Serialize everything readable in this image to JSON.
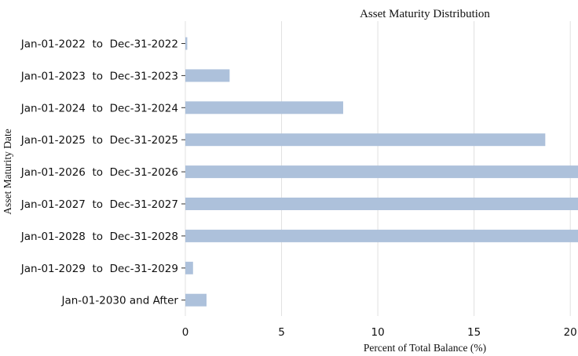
{
  "chart_data": {
    "type": "bar",
    "orientation": "horizontal",
    "title": "Asset Maturity Distribution",
    "xlabel": "Percent of Total Balance (%)",
    "ylabel": "Asset Maturity Date",
    "categories": [
      "Jan-01-2022  to  Dec-31-2022",
      "Jan-01-2023  to  Dec-31-2023",
      "Jan-01-2024  to  Dec-31-2024",
      "Jan-01-2025  to  Dec-31-2025",
      "Jan-01-2026  to  Dec-31-2026",
      "Jan-01-2027  to  Dec-31-2027",
      "Jan-01-2028  to  Dec-31-2028",
      "Jan-01-2029  to  Dec-31-2029",
      "Jan-01-2030 and After"
    ],
    "values": [
      0.1,
      2.3,
      8.2,
      18.7,
      21.5,
      21.5,
      21.5,
      0.4,
      1.1
    ],
    "xticks": [
      0,
      5,
      10,
      15,
      20
    ],
    "xlim": [
      0,
      20.4
    ],
    "grid": "vertical",
    "bar_color": "#adc1db",
    "grid_color": "#e0e0e0"
  }
}
